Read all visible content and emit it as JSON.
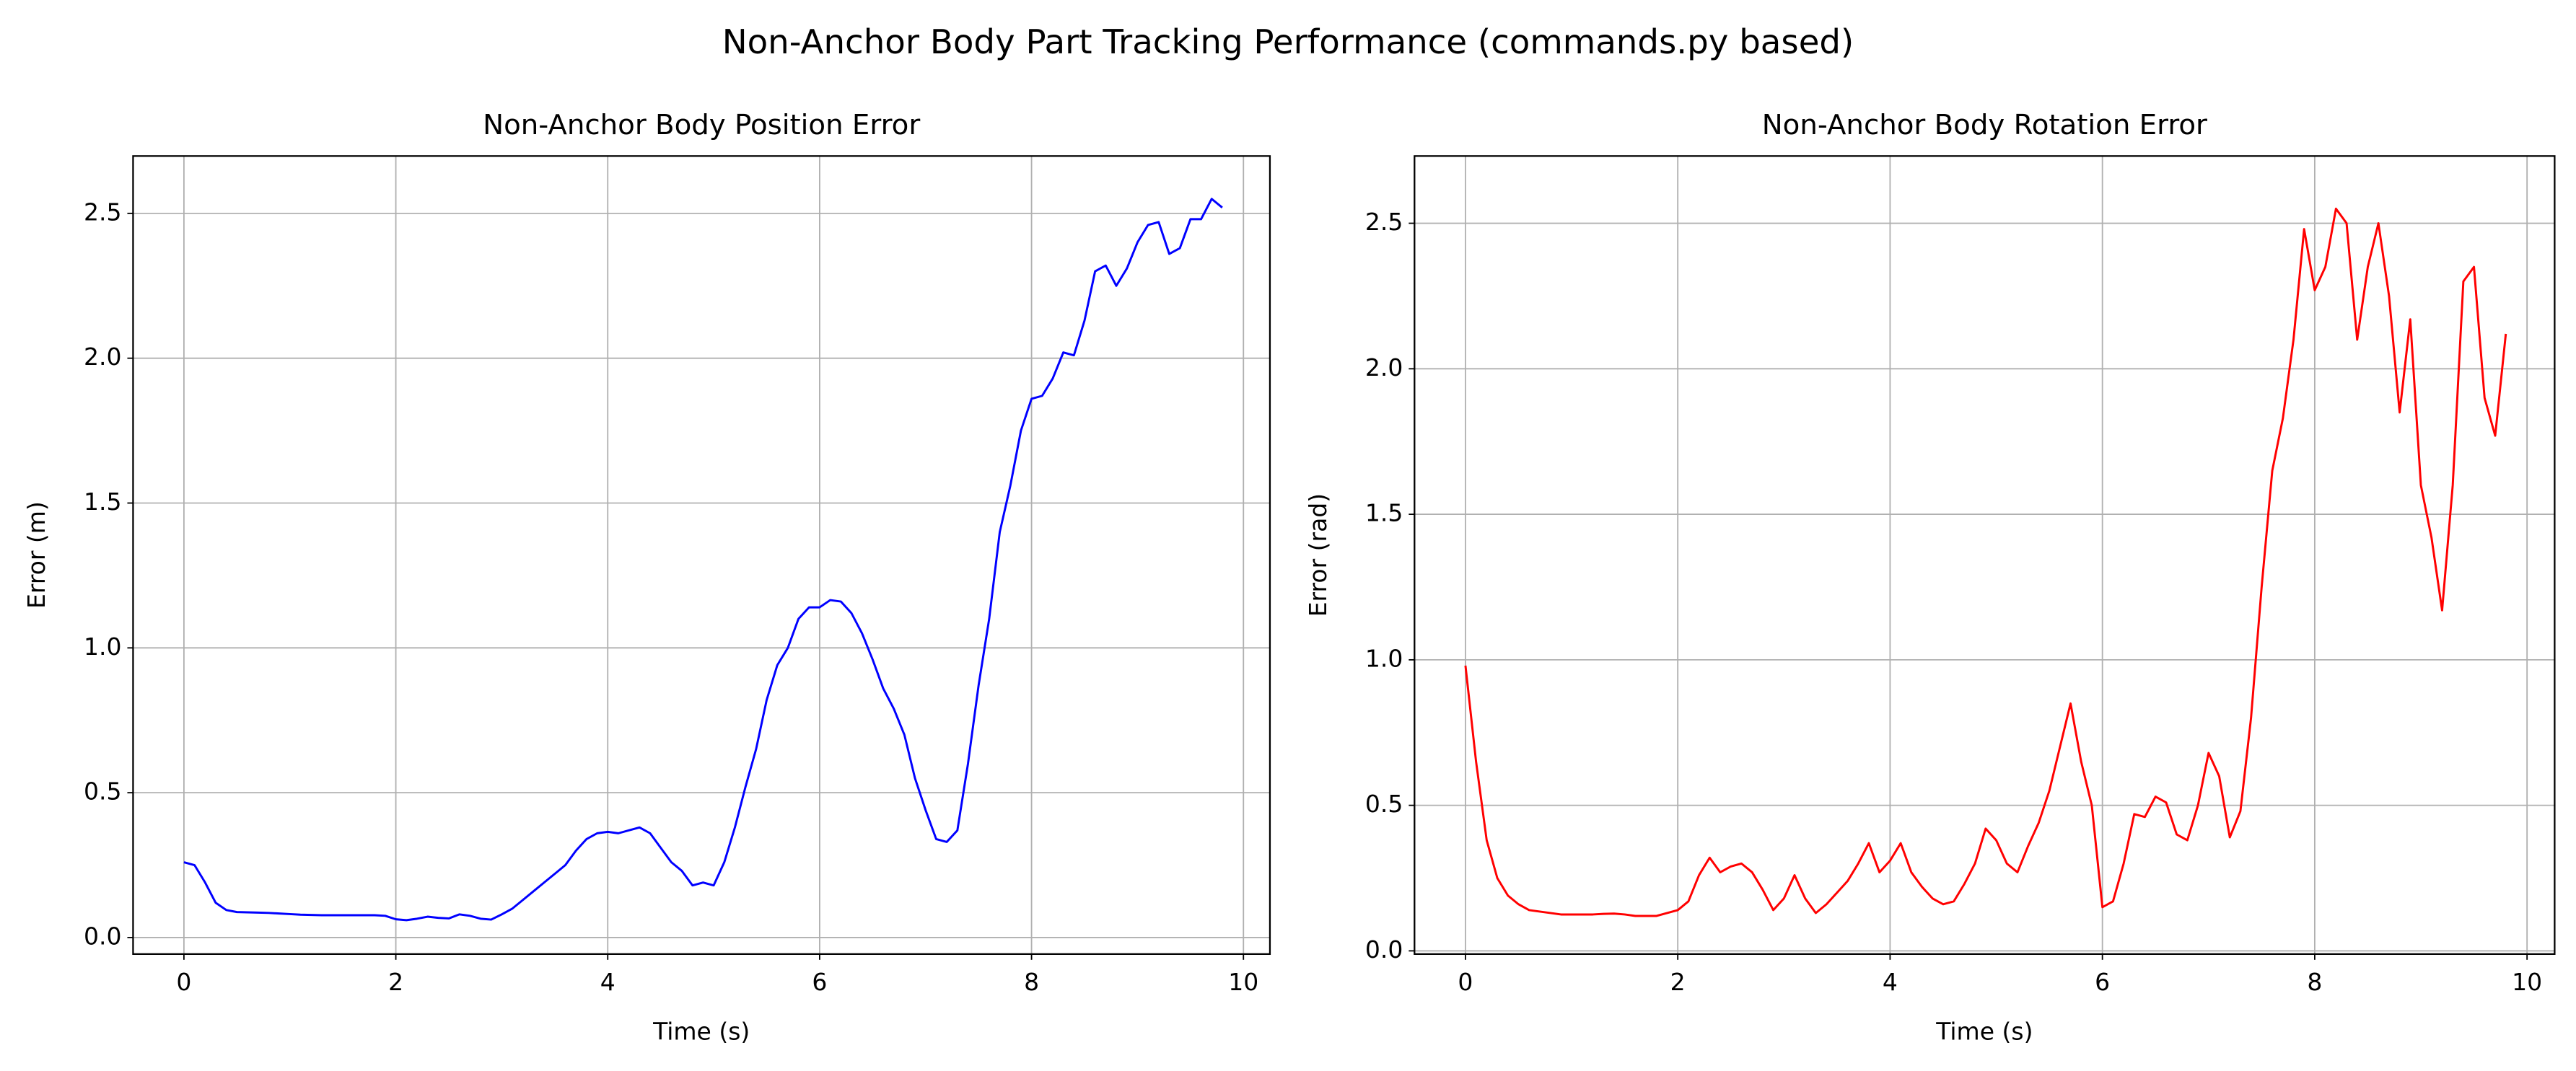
{
  "title": "Non-Anchor Body Part Tracking Performance (commands.py based)",
  "chart_data": [
    {
      "type": "line",
      "title": "Non-Anchor Body Position Error",
      "x_label": "Time (s)",
      "y_label": "Error (m)",
      "grid": true,
      "xlim": [
        -0.48,
        10.25
      ],
      "ylim": [
        -0.057,
        2.698
      ],
      "xticks": [
        0,
        2,
        4,
        6,
        8,
        10
      ],
      "yticks": [
        {
          "value": 0,
          "label": "0.0"
        },
        0.5,
        {
          "value": 1,
          "label": "1.0"
        },
        1.5,
        {
          "value": 2,
          "label": "2.0"
        },
        2.5
      ],
      "x": [
        0,
        0.1,
        0.2,
        0.3,
        0.4,
        0.5,
        0.6,
        0.7,
        0.8,
        0.9,
        1,
        1.1,
        1.2,
        1.3,
        1.4,
        1.5,
        1.6,
        1.7,
        1.8,
        1.9,
        2,
        2.1,
        2.2,
        2.3,
        2.4,
        2.5,
        2.6,
        2.7,
        2.8,
        2.9,
        3,
        3.1,
        3.2,
        3.3,
        3.4,
        3.5,
        3.6,
        3.7,
        3.8,
        3.9,
        4,
        4.1,
        4.2,
        4.3,
        4.4,
        4.5,
        4.6,
        4.7,
        4.8,
        4.9,
        5,
        5.1,
        5.2,
        5.3,
        5.4,
        5.5,
        5.6,
        5.7,
        5.8,
        5.9,
        6,
        6.1,
        6.2,
        6.3,
        6.4,
        6.5,
        6.6,
        6.7,
        6.8,
        6.9,
        7,
        7.1,
        7.2,
        7.3,
        7.4,
        7.5,
        7.6,
        7.7,
        7.8,
        7.9,
        8,
        8.1,
        8.2,
        8.3,
        8.4,
        8.5,
        8.6,
        8.7,
        8.8,
        8.9,
        9,
        9.1,
        9.2,
        9.3,
        9.4,
        9.5,
        9.6,
        9.7,
        9.8
      ],
      "series": [
        {
          "color": "#0000ff",
          "values": [
            0.26,
            0.25,
            0.19,
            0.12,
            0.095,
            0.088,
            0.087,
            0.086,
            0.085,
            0.083,
            0.081,
            0.079,
            0.078,
            0.077,
            0.077,
            0.077,
            0.077,
            0.077,
            0.077,
            0.075,
            0.063,
            0.06,
            0.065,
            0.072,
            0.068,
            0.066,
            0.08,
            0.075,
            0.065,
            0.062,
            0.08,
            0.1,
            0.13,
            0.16,
            0.19,
            0.22,
            0.25,
            0.3,
            0.34,
            0.36,
            0.365,
            0.36,
            0.37,
            0.38,
            0.36,
            0.31,
            0.26,
            0.23,
            0.18,
            0.19,
            0.18,
            0.26,
            0.38,
            0.52,
            0.65,
            0.82,
            0.94,
            1.0,
            1.1,
            1.14,
            1.14,
            1.165,
            1.16,
            1.12,
            1.05,
            0.96,
            0.86,
            0.79,
            0.7,
            0.55,
            0.44,
            0.34,
            0.33,
            0.37,
            0.6,
            0.87,
            1.1,
            1.4,
            1.56,
            1.75,
            1.86,
            1.87,
            1.93,
            2.02,
            2.01,
            2.13,
            2.3,
            2.32,
            2.25,
            2.31,
            2.4,
            2.46,
            2.47,
            2.36,
            2.38,
            2.48,
            2.48,
            2.55,
            2.52
          ]
        }
      ]
    },
    {
      "type": "line",
      "title": "Non-Anchor Body Rotation Error",
      "x_label": "Time (s)",
      "y_label": "Error (rad)",
      "grid": true,
      "xlim": [
        -0.48,
        10.26
      ],
      "ylim": [
        -0.011,
        2.731
      ],
      "xticks": [
        0,
        2,
        4,
        6,
        8,
        10
      ],
      "yticks": [
        {
          "value": 0,
          "label": "0.0"
        },
        0.5,
        {
          "value": 1,
          "label": "1.0"
        },
        1.5,
        {
          "value": 2,
          "label": "2.0"
        },
        2.5
      ],
      "x": [
        0,
        0.1,
        0.2,
        0.3,
        0.4,
        0.5,
        0.6,
        0.7,
        0.8,
        0.9,
        1,
        1.1,
        1.2,
        1.3,
        1.4,
        1.5,
        1.6,
        1.7,
        1.8,
        1.9,
        2,
        2.1,
        2.2,
        2.3,
        2.4,
        2.5,
        2.6,
        2.7,
        2.8,
        2.9,
        3,
        3.1,
        3.2,
        3.3,
        3.4,
        3.5,
        3.6,
        3.7,
        3.8,
        3.9,
        4,
        4.1,
        4.2,
        4.3,
        4.4,
        4.5,
        4.6,
        4.7,
        4.8,
        4.9,
        5,
        5.1,
        5.2,
        5.3,
        5.4,
        5.5,
        5.6,
        5.7,
        5.8,
        5.9,
        6,
        6.1,
        6.2,
        6.3,
        6.4,
        6.5,
        6.6,
        6.7,
        6.8,
        6.9,
        7,
        7.1,
        7.2,
        7.3,
        7.4,
        7.5,
        7.6,
        7.7,
        7.8,
        7.9,
        8,
        8.1,
        8.2,
        8.3,
        8.4,
        8.5,
        8.6,
        8.7,
        8.8,
        8.9,
        9,
        9.1,
        9.2,
        9.3,
        9.4,
        9.5,
        9.6,
        9.7,
        9.8
      ],
      "series": [
        {
          "color": "#ff0000",
          "values": [
            0.98,
            0.65,
            0.38,
            0.25,
            0.19,
            0.16,
            0.14,
            0.135,
            0.13,
            0.125,
            0.125,
            0.125,
            0.125,
            0.127,
            0.128,
            0.125,
            0.12,
            0.12,
            0.12,
            0.13,
            0.14,
            0.17,
            0.26,
            0.32,
            0.27,
            0.29,
            0.3,
            0.27,
            0.21,
            0.14,
            0.18,
            0.26,
            0.18,
            0.13,
            0.16,
            0.2,
            0.24,
            0.3,
            0.37,
            0.27,
            0.31,
            0.37,
            0.27,
            0.22,
            0.18,
            0.16,
            0.17,
            0.23,
            0.3,
            0.42,
            0.38,
            0.3,
            0.27,
            0.36,
            0.44,
            0.55,
            0.7,
            0.85,
            0.65,
            0.5,
            0.15,
            0.17,
            0.3,
            0.47,
            0.46,
            0.53,
            0.51,
            0.4,
            0.38,
            0.5,
            0.68,
            0.6,
            0.39,
            0.48,
            0.8,
            1.25,
            1.65,
            1.83,
            2.1,
            2.48,
            2.27,
            2.35,
            2.55,
            2.5,
            2.1,
            2.35,
            2.5,
            2.25,
            1.85,
            2.17,
            1.6,
            1.42,
            1.17,
            1.6,
            2.3,
            2.35,
            1.9,
            1.77,
            2.12
          ]
        }
      ]
    }
  ]
}
